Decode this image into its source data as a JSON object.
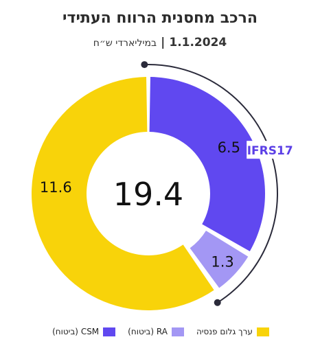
{
  "header": {
    "title": "הרכב מחסנית הרווח העתידי",
    "date": "1.1.2024",
    "separator": "|",
    "unit": "במיליארדי ש״ח"
  },
  "chart_data": {
    "type": "pie",
    "title": "הרכב מחסנית הרווח העתידי",
    "center_label": "19.4",
    "bracket_label": "IFRS17",
    "slices": [
      {
        "name": "CSM (ביטוח)",
        "value": 6.5,
        "label": "6.5",
        "color": "#6048f0"
      },
      {
        "name": "RA (ביטוח)",
        "value": 1.3,
        "label": "1.3",
        "color": "#a397f4"
      },
      {
        "name": "ערך גלום פנסיה",
        "value": 11.6,
        "label": "11.6",
        "color": "#f8d30a"
      }
    ],
    "legend_position": "bottom",
    "bracket_color": "#2a2a3a",
    "bracket_label_color": "#5b3fe6"
  }
}
